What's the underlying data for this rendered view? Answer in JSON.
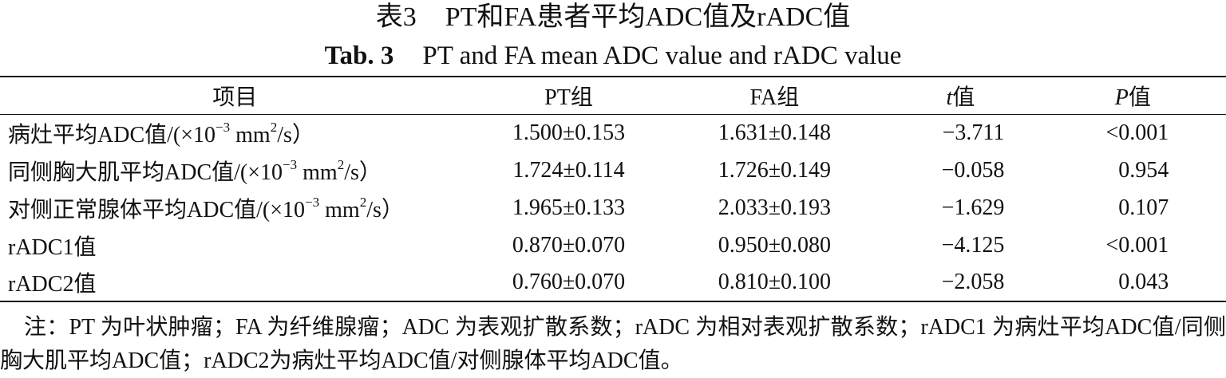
{
  "caption": {
    "zh_label": "表3",
    "zh_title": "PT和FA患者平均ADC值及rADC值",
    "en_label": "Tab. 3",
    "en_title": "PT and FA mean ADC value and rADC value"
  },
  "table": {
    "headers": {
      "item": "项目",
      "pt": "PT组",
      "fa": "FA组",
      "t_sym": "t",
      "t_suffix": "值",
      "p_sym": "P",
      "p_suffix": "值"
    },
    "unit": {
      "open": "/(×10",
      "exp": "−3",
      "mid": " mm",
      "exp2": "2",
      "close": "/s）"
    },
    "rows": [
      {
        "label": "病灶平均ADC值",
        "pt": "1.500±0.153",
        "fa": "1.631±0.148",
        "t": "−3.711",
        "p": "<0.001"
      },
      {
        "label": "同侧胸大肌平均ADC值",
        "pt": "1.724±0.114",
        "fa": "1.726±0.149",
        "t": "−0.058",
        "p": "0.954"
      },
      {
        "label": "对侧正常腺体平均ADC值",
        "pt": "1.965±0.133",
        "fa": "2.033±0.193",
        "t": "−1.629",
        "p": "0.107"
      },
      {
        "label": "rADC1值",
        "pt": "0.870±0.070",
        "fa": "0.950±0.080",
        "t": "−4.125",
        "p": "<0.001"
      },
      {
        "label": "rADC2值",
        "pt": "0.760±0.070",
        "fa": "0.810±0.100",
        "t": "−2.058",
        "p": "0.043"
      }
    ]
  },
  "note": "注：PT 为叶状肿瘤；FA 为纤维腺瘤；ADC 为表观扩散系数；rADC 为相对表观扩散系数；rADC1 为病灶平均ADC值/同侧胸大肌平均ADC值；rADC2为病灶平均ADC值/对侧腺体平均ADC值。"
}
